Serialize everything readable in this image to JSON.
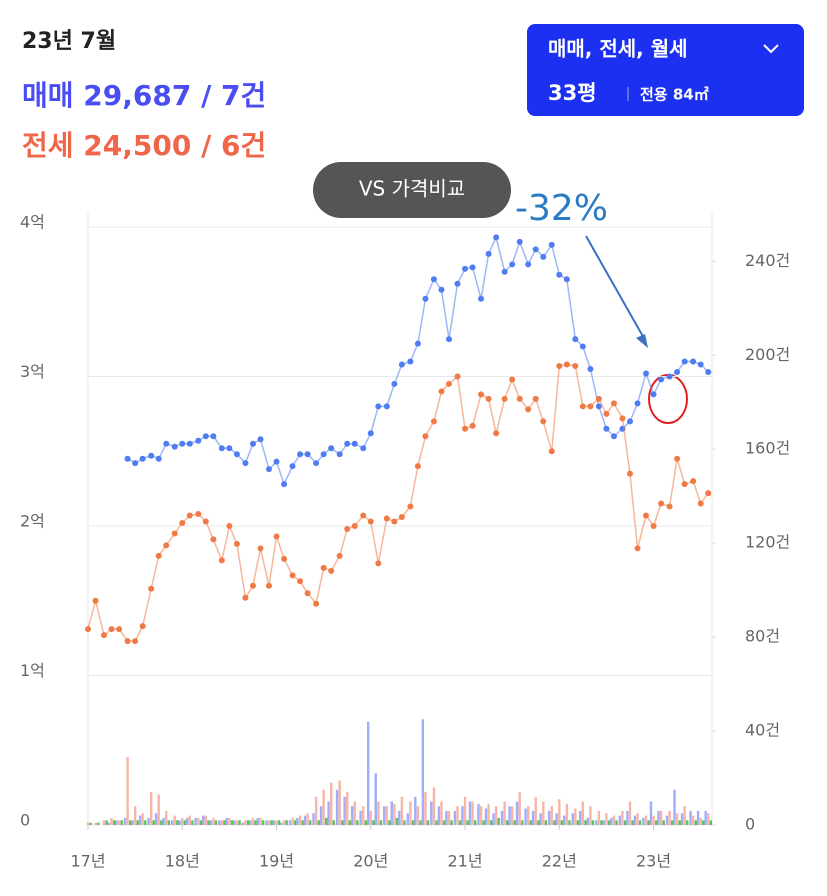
{
  "header": {
    "date": "23년 7월",
    "sale": "매매 29,687 / 7건",
    "lease": "전세 24,500 / 6건"
  },
  "filter": {
    "types": "매매, 전세, 월세",
    "size": "33평",
    "area": "전용 84㎡"
  },
  "compare_button": "VS 가격비교",
  "chart_data": {
    "type": "line",
    "annotation": "-32%",
    "x": [
      17,
      17.08,
      17.17,
      17.25,
      17.33,
      17.42,
      17.5,
      17.58,
      17.67,
      17.75,
      17.83,
      17.92,
      18,
      18.08,
      18.17,
      18.25,
      18.33,
      18.42,
      18.5,
      18.58,
      18.67,
      18.75,
      18.83,
      18.92,
      19,
      19.08,
      19.17,
      19.25,
      19.33,
      19.42,
      19.5,
      19.58,
      19.67,
      19.75,
      19.83,
      19.92,
      20,
      20.08,
      20.17,
      20.25,
      20.33,
      20.42,
      20.5,
      20.58,
      20.67,
      20.75,
      20.83,
      20.92,
      21,
      21.08,
      21.17,
      21.25,
      21.33,
      21.42,
      21.5,
      21.58,
      21.67,
      21.75,
      21.83,
      21.92,
      22,
      22.08,
      22.17,
      22.25,
      22.33,
      22.42,
      22.5,
      22.58,
      22.67,
      22.75,
      22.83,
      22.92,
      23,
      23.08,
      23.17,
      23.25,
      23.33,
      23.42,
      23.5,
      23.58
    ],
    "xlim": [
      17,
      23.62
    ],
    "xticks": [
      {
        "value": 17,
        "label": "17년"
      },
      {
        "value": 18,
        "label": "18년"
      },
      {
        "value": 19,
        "label": "19년"
      },
      {
        "value": 20,
        "label": "20년"
      },
      {
        "value": 21,
        "label": "21년"
      },
      {
        "value": 22,
        "label": "22년"
      },
      {
        "value": 23,
        "label": "23년"
      }
    ],
    "ylim": [
      0,
      4.1
    ],
    "yticks": [
      0,
      {
        "value": 1,
        "label": "1억"
      },
      {
        "value": 2,
        "label": "2억"
      },
      {
        "value": 3,
        "label": "3억"
      },
      {
        "value": 4,
        "label": "4억"
      }
    ],
    "y2lim": [
      0,
      261
    ],
    "y2ticks": [
      0,
      {
        "value": 40,
        "label": "40건"
      },
      {
        "value": 80,
        "label": "80건"
      },
      {
        "value": 120,
        "label": "120건"
      },
      {
        "value": 160,
        "label": "160건"
      },
      {
        "value": 200,
        "label": "200건"
      },
      {
        "value": 240,
        "label": "240건"
      }
    ],
    "grid": true,
    "series": [
      {
        "type": "bar",
        "axis": "y2",
        "color": "#8f9ff7",
        "values": [
          0,
          0,
          0,
          1,
          2,
          3,
          2,
          4,
          3,
          5,
          3,
          2,
          2,
          3,
          3,
          4,
          2,
          2,
          3,
          2,
          1,
          2,
          3,
          2,
          2,
          1,
          2,
          3,
          4,
          5,
          8,
          10,
          15,
          12,
          8,
          6,
          44,
          22,
          8,
          10,
          6,
          5,
          12,
          45,
          10,
          8,
          6,
          6,
          8,
          10,
          9,
          7,
          5,
          6,
          8,
          10,
          7,
          6,
          5,
          6,
          5,
          4,
          5,
          6,
          3,
          2,
          2,
          3,
          4,
          6,
          4,
          3,
          10,
          6,
          4,
          15,
          5,
          6,
          6,
          6
        ]
      },
      {
        "type": "bar",
        "axis": "y2",
        "color": "#f6a898",
        "values": [
          1,
          1,
          2,
          3,
          2,
          29,
          8,
          5,
          14,
          13,
          6,
          4,
          3,
          4,
          3,
          4,
          3,
          2,
          3,
          2,
          2,
          3,
          3,
          2,
          2,
          2,
          3,
          4,
          5,
          12,
          15,
          18,
          19,
          14,
          10,
          8,
          6,
          10,
          8,
          9,
          12,
          10,
          8,
          14,
          16,
          10,
          6,
          8,
          12,
          10,
          8,
          9,
          8,
          10,
          8,
          14,
          8,
          12,
          10,
          8,
          11,
          9,
          7,
          10,
          8,
          6,
          5,
          4,
          6,
          10,
          5,
          4,
          4,
          6,
          6,
          5,
          8,
          4,
          3,
          5
        ]
      },
      {
        "type": "bar",
        "axis": "y2",
        "color": "#3cba3c",
        "values": [
          1,
          1,
          2,
          2,
          2,
          2,
          2,
          2,
          2,
          2,
          2,
          2,
          2,
          2,
          2,
          2,
          2,
          2,
          2,
          2,
          2,
          2,
          2,
          2,
          2,
          2,
          2,
          2,
          2,
          2,
          3,
          2,
          2,
          2,
          2,
          2,
          2,
          2,
          2,
          3,
          2,
          2,
          2,
          2,
          2,
          2,
          2,
          2,
          2,
          2,
          2,
          2,
          3,
          2,
          2,
          2,
          2,
          2,
          2,
          2,
          2,
          2,
          2,
          2,
          2,
          2,
          2,
          2,
          2,
          2,
          2,
          2,
          2,
          2,
          2,
          2,
          2,
          2,
          2,
          2
        ]
      },
      {
        "type": "line",
        "color": "#4f7cf0",
        "values": [
          null,
          null,
          null,
          null,
          null,
          2.45,
          2.42,
          2.45,
          2.47,
          2.45,
          2.55,
          2.53,
          2.55,
          2.55,
          2.57,
          2.6,
          2.6,
          2.52,
          2.52,
          2.48,
          2.42,
          2.55,
          2.58,
          2.38,
          2.43,
          2.28,
          2.4,
          2.48,
          2.48,
          2.42,
          2.48,
          2.52,
          2.48,
          2.55,
          2.55,
          2.52,
          2.62,
          2.8,
          2.8,
          2.95,
          3.08,
          3.1,
          3.22,
          3.52,
          3.65,
          3.58,
          3.25,
          3.62,
          3.72,
          3.73,
          3.52,
          3.82,
          3.93,
          3.7,
          3.75,
          3.9,
          3.75,
          3.85,
          3.8,
          3.88,
          3.68,
          3.65,
          3.25,
          3.2,
          3.05,
          2.8,
          2.65,
          2.6,
          2.65,
          2.7,
          2.82,
          3.02,
          2.88,
          2.98,
          3.0,
          3.03,
          3.1,
          3.1,
          3.08,
          3.03
        ]
      },
      {
        "type": "line",
        "color": "#f07a45",
        "values": [
          1.31,
          1.5,
          1.27,
          1.31,
          1.31,
          1.23,
          1.23,
          1.33,
          1.58,
          1.8,
          1.87,
          1.95,
          2.02,
          2.07,
          2.08,
          2.03,
          1.91,
          1.77,
          2.0,
          1.88,
          1.52,
          1.6,
          1.85,
          1.6,
          1.93,
          1.78,
          1.67,
          1.63,
          1.55,
          1.48,
          1.72,
          1.7,
          1.8,
          1.98,
          2.0,
          2.07,
          2.03,
          1.75,
          2.05,
          2.03,
          2.06,
          2.13,
          2.4,
          2.6,
          2.7,
          2.9,
          2.95,
          3.0,
          2.65,
          2.67,
          2.88,
          2.85,
          2.62,
          2.85,
          2.98,
          2.85,
          2.78,
          2.85,
          2.7,
          2.5,
          3.07,
          3.08,
          3.07,
          2.8,
          2.8,
          2.85,
          2.75,
          2.82,
          2.72,
          2.35,
          1.85,
          2.07,
          2.0,
          2.15,
          2.13,
          2.45,
          2.28,
          2.3,
          2.15,
          2.22
        ]
      }
    ]
  }
}
